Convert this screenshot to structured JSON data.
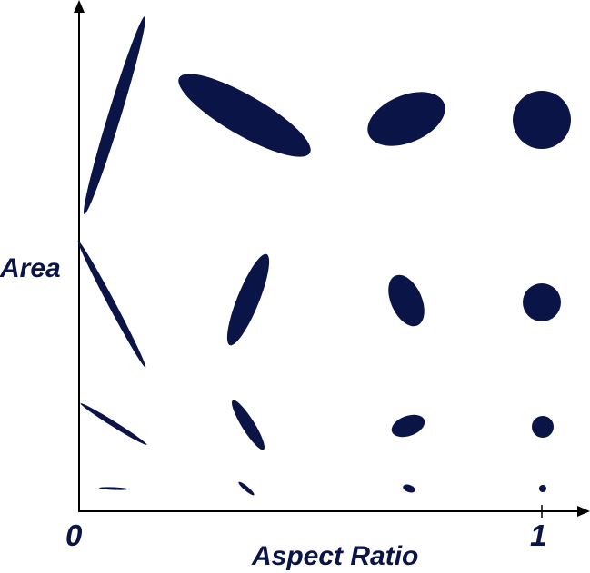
{
  "diagram": {
    "x_axis_title": "Aspect Ratio",
    "y_axis_title": "Area",
    "x_tick_labels": {
      "start": "0",
      "end": "1"
    },
    "colors": {
      "glyph_fill": "#0b1446",
      "axis_title": "#0b1446",
      "tick_label": "#0b1446",
      "axis": "#000000"
    },
    "glyphs_description_levels": {
      "aspect_ratio_levels": 4,
      "area_levels": 4
    }
  }
}
